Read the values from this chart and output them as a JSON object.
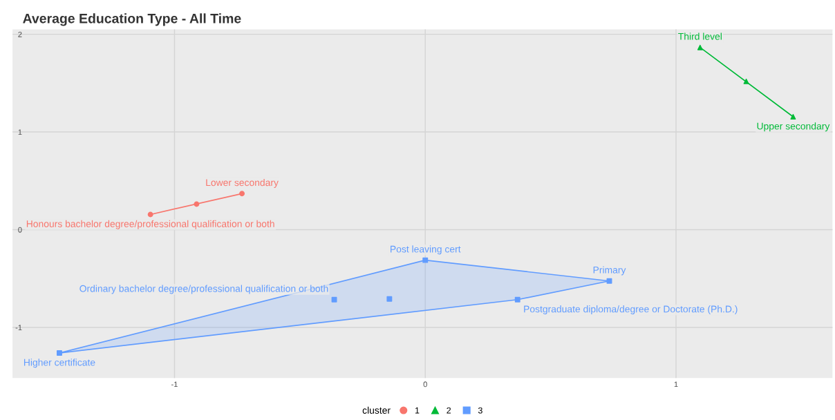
{
  "chart_data": {
    "type": "scatter",
    "title": "Average Education Type - All Time",
    "legend_title": "cluster",
    "legend": "bottom",
    "grid": true,
    "xlim": [
      -1.646,
      1.624
    ],
    "ylim": [
      -1.518,
      2.05
    ],
    "xticks": [
      -1,
      0,
      1
    ],
    "yticks": [
      -1,
      0,
      1,
      2
    ],
    "series": [
      {
        "type": "line",
        "color": "#f8766d",
        "x": [
          -1.096,
          -0.731
        ],
        "values": [
          0.156,
          0.369
        ]
      },
      {
        "type": "line",
        "color": "#00ba38",
        "x": [
          1.096,
          1.467
        ],
        "values": [
          1.865,
          1.156
        ]
      },
      {
        "type": "area",
        "color": "#619cff",
        "x": [
          -1.459,
          0,
          0.734,
          0.368,
          -1.459
        ],
        "values": [
          -1.262,
          -0.312,
          -0.525,
          -0.716,
          -1.262
        ]
      },
      {
        "name": "1",
        "color": "#f8766d",
        "marker": "circle",
        "x": [
          -1.096,
          -0.731
        ],
        "values": [
          0.156,
          0.369
        ]
      },
      {
        "name": "2",
        "color": "#00ba38",
        "marker": "triangle",
        "x": [
          1.096,
          1.467
        ],
        "values": [
          1.865,
          1.156
        ]
      },
      {
        "name": "3",
        "color": "#619cff",
        "marker": "square",
        "x": [
          0,
          0.734,
          -0.363,
          0.368,
          -1.459
        ],
        "values": [
          -0.312,
          -0.525,
          -0.716,
          -0.716,
          -1.262
        ]
      },
      {
        "color": "#f8766d",
        "marker": "circle",
        "x": [
          -0.912
        ],
        "values": [
          0.262
        ]
      },
      {
        "color": "#00ba38",
        "marker": "triangle",
        "x": [
          1.28
        ],
        "values": [
          1.518
        ]
      },
      {
        "color": "#619cff",
        "marker": "square",
        "x": [
          -0.143
        ],
        "values": [
          -0.709
        ]
      }
    ],
    "annotations": [
      {
        "text": "Honours bachelor degree/professional qualification or both",
        "x": -1.096,
        "y": 0.156
      },
      {
        "text": "Lower secondary",
        "x": -0.731,
        "y": 0.369
      },
      {
        "text": "Third level",
        "x": 1.096,
        "y": 1.865
      },
      {
        "text": "Upper secondary",
        "x": 1.467,
        "y": 1.156
      },
      {
        "text": "Post leaving cert",
        "x": 0,
        "y": -0.312
      },
      {
        "text": "Primary",
        "x": 0.734,
        "y": -0.525
      },
      {
        "text": "Ordinary bachelor degree/professional qualification or both",
        "x": -0.363,
        "y": -0.716
      },
      {
        "text": "Postgraduate diploma/degree or Doctorate (Ph.D.)",
        "x": 0.368,
        "y": -0.716
      },
      {
        "text": "Higher certificate",
        "x": -1.459,
        "y": -1.262
      }
    ]
  }
}
